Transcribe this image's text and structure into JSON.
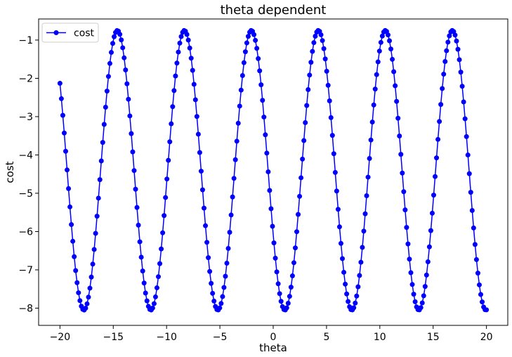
{
  "chart_data": {
    "type": "line",
    "title": "theta dependent",
    "xlabel": "theta",
    "ylabel": "cost",
    "xlim": [
      -22,
      22
    ],
    "ylim": [
      -8.45,
      -0.45
    ],
    "xticks": [
      -20,
      -15,
      -10,
      -5,
      0,
      5,
      10,
      15,
      20
    ],
    "yticks": [
      -8,
      -7,
      -6,
      -5,
      -4,
      -3,
      -2,
      -1
    ],
    "xtick_labels": [
      "−20",
      "−15",
      "−10",
      "−5",
      "0",
      "5",
      "10",
      "15",
      "20"
    ],
    "ytick_labels": [
      "−8",
      "−7",
      "−6",
      "−5",
      "−4",
      "−3",
      "−2",
      "−1"
    ],
    "grid": false,
    "legend_position": "top-left",
    "series": [
      {
        "name": "cost",
        "color": "#0000ff",
        "marker": "circle",
        "function": "y = -4.4 + 3.65*cos(theta + 2.05)",
        "x_range": [
          -20,
          20
        ],
        "n_points": 300
      }
    ]
  }
}
